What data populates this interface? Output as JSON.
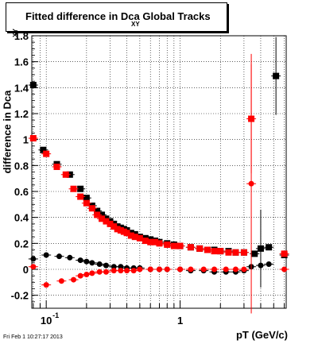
{
  "title": {
    "main": "Fitted difference in Dca  Global Tracks",
    "sub": "XY"
  },
  "footer": {
    "date": "Fri Feb  1 10:27:17 2013"
  },
  "chart_data": {
    "type": "scatter",
    "title": "Fitted difference in Dca_XY Global Tracks",
    "xlabel": "pT (GeV/c)",
    "ylabel": "difference in Dca",
    "ylabel_sub": "XY",
    "xscale": "log",
    "xlim": [
      0.078,
      6.2
    ],
    "ylim": [
      -0.3,
      1.8
    ],
    "grid": true,
    "yticks": [
      -0.2,
      0,
      0.2,
      0.4,
      0.6,
      0.8,
      1,
      1.2,
      1.4,
      1.6,
      1.8
    ],
    "xtick_labels": [
      {
        "value": 0.1,
        "label": "10",
        "sup": "-1"
      },
      {
        "value": 1,
        "label": "1",
        "sup": ""
      }
    ],
    "series": [
      {
        "color": "#000000",
        "marker": "square",
        "points": [
          [
            0.08,
            1.42
          ],
          [
            0.095,
            0.92
          ],
          [
            0.12,
            0.81
          ],
          [
            0.15,
            0.73
          ],
          [
            0.18,
            0.62
          ],
          [
            0.2,
            0.55
          ],
          [
            0.22,
            0.49
          ],
          [
            0.24,
            0.45
          ],
          [
            0.26,
            0.42
          ],
          [
            0.28,
            0.39
          ],
          [
            0.3,
            0.37
          ],
          [
            0.32,
            0.35
          ],
          [
            0.34,
            0.33
          ],
          [
            0.36,
            0.32
          ],
          [
            0.38,
            0.31
          ],
          [
            0.4,
            0.3
          ],
          [
            0.43,
            0.28
          ],
          [
            0.46,
            0.27
          ],
          [
            0.5,
            0.25
          ],
          [
            0.55,
            0.24
          ],
          [
            0.6,
            0.23
          ],
          [
            0.65,
            0.22
          ],
          [
            0.7,
            0.21
          ],
          [
            0.8,
            0.2
          ],
          [
            0.9,
            0.19
          ],
          [
            1.0,
            0.18
          ],
          [
            1.2,
            0.17
          ],
          [
            1.4,
            0.16
          ],
          [
            1.6,
            0.15
          ],
          [
            1.8,
            0.15
          ],
          [
            2.0,
            0.14
          ],
          [
            2.3,
            0.14
          ],
          [
            2.6,
            0.13
          ],
          [
            3.0,
            0.13
          ],
          [
            3.6,
            0.12
          ],
          [
            4.0,
            0.16
          ],
          [
            4.6,
            0.17
          ],
          [
            5.2,
            1.49
          ],
          [
            6.0,
            0.11
          ]
        ],
        "errors": [
          [
            4.0,
            0.3
          ],
          [
            5.2,
            0.3
          ]
        ]
      },
      {
        "color": "#ff0000",
        "marker": "square",
        "points": [
          [
            0.08,
            1.01
          ],
          [
            0.1,
            0.89
          ],
          [
            0.12,
            0.79
          ],
          [
            0.14,
            0.73
          ],
          [
            0.16,
            0.62
          ],
          [
            0.18,
            0.56
          ],
          [
            0.2,
            0.51
          ],
          [
            0.22,
            0.47
          ],
          [
            0.24,
            0.42
          ],
          [
            0.26,
            0.39
          ],
          [
            0.28,
            0.37
          ],
          [
            0.3,
            0.35
          ],
          [
            0.32,
            0.33
          ],
          [
            0.34,
            0.31
          ],
          [
            0.36,
            0.3
          ],
          [
            0.38,
            0.29
          ],
          [
            0.4,
            0.28
          ],
          [
            0.43,
            0.26
          ],
          [
            0.46,
            0.25
          ],
          [
            0.5,
            0.24
          ],
          [
            0.55,
            0.22
          ],
          [
            0.6,
            0.21
          ],
          [
            0.65,
            0.21
          ],
          [
            0.7,
            0.2
          ],
          [
            0.8,
            0.19
          ],
          [
            0.9,
            0.18
          ],
          [
            1.0,
            0.18
          ],
          [
            1.2,
            0.17
          ],
          [
            1.4,
            0.16
          ],
          [
            1.6,
            0.15
          ],
          [
            1.8,
            0.14
          ],
          [
            2.0,
            0.14
          ],
          [
            2.3,
            0.13
          ],
          [
            2.6,
            0.13
          ],
          [
            3.0,
            0.13
          ],
          [
            3.4,
            1.16
          ],
          [
            6.0,
            0.12
          ]
        ],
        "errors": [
          [
            3.4,
            0.42
          ]
        ]
      },
      {
        "color": "#000000",
        "marker": "circle",
        "points": [
          [
            0.08,
            0.08
          ],
          [
            0.1,
            0.11
          ],
          [
            0.125,
            0.1
          ],
          [
            0.15,
            0.09
          ],
          [
            0.18,
            0.07
          ],
          [
            0.2,
            0.06
          ],
          [
            0.22,
            0.05
          ],
          [
            0.25,
            0.04
          ],
          [
            0.28,
            0.03
          ],
          [
            0.32,
            0.02
          ],
          [
            0.36,
            0.02
          ],
          [
            0.4,
            0.01
          ],
          [
            0.45,
            0.01
          ],
          [
            0.5,
            0.01
          ],
          [
            0.6,
            0.0
          ],
          [
            0.7,
            0.0
          ],
          [
            0.8,
            0.0
          ],
          [
            1.0,
            0.0
          ],
          [
            1.2,
            -0.01
          ],
          [
            1.5,
            -0.01
          ],
          [
            1.8,
            -0.02
          ],
          [
            2.2,
            -0.02
          ],
          [
            2.6,
            -0.02
          ],
          [
            3.0,
            -0.01
          ],
          [
            3.4,
            0.02
          ],
          [
            4.0,
            0.03
          ],
          [
            4.6,
            0.04
          ]
        ]
      },
      {
        "color": "#ff0000",
        "marker": "circle",
        "points": [
          [
            0.08,
            0.02
          ],
          [
            0.1,
            -0.12
          ],
          [
            0.13,
            -0.09
          ],
          [
            0.16,
            -0.08
          ],
          [
            0.18,
            -0.05
          ],
          [
            0.2,
            -0.04
          ],
          [
            0.22,
            -0.03
          ],
          [
            0.25,
            -0.02
          ],
          [
            0.28,
            -0.02
          ],
          [
            0.32,
            -0.01
          ],
          [
            0.36,
            -0.01
          ],
          [
            0.4,
            -0.01
          ],
          [
            0.45,
            -0.01
          ],
          [
            0.5,
            0.0
          ],
          [
            0.6,
            0.0
          ],
          [
            0.7,
            0.0
          ],
          [
            0.8,
            0.0
          ],
          [
            1.0,
            0.0
          ],
          [
            1.2,
            0.0
          ],
          [
            1.5,
            0.0
          ],
          [
            1.8,
            0.0
          ],
          [
            2.2,
            0.0
          ],
          [
            2.6,
            0.0
          ],
          [
            3.0,
            0.0
          ],
          [
            3.4,
            0.66
          ],
          [
            6.0,
            0.0
          ]
        ],
        "errors": [
          [
            3.4,
            1.0
          ]
        ]
      }
    ]
  }
}
